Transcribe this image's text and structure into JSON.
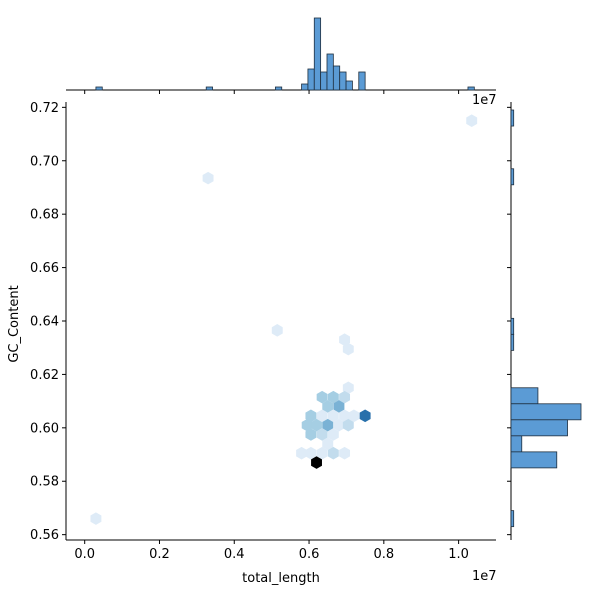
{
  "chart_data": {
    "type": "scatter",
    "subtype": "hexbin-jointplot",
    "xlabel": "total_length",
    "ylabel": "GC_Content",
    "x_offset_text": "1e7",
    "xlim": [
      -0.05,
      1.1
    ],
    "ylim": [
      0.558,
      0.722
    ],
    "x_ticks": [
      "0.0",
      "0.2",
      "0.4",
      "0.6",
      "0.8",
      "1.0"
    ],
    "y_ticks": [
      "0.56",
      "0.58",
      "0.60",
      "0.62",
      "0.64",
      "0.66",
      "0.68",
      "0.70",
      "0.72"
    ],
    "grid": false,
    "legend": "none",
    "colors": {
      "palette_light": "#deebf7",
      "palette_mid": "#9ecae1",
      "palette_dark": "#3182bd",
      "peak": "#000000",
      "hist_fill": "#5b9bd5"
    },
    "hexbins": [
      {
        "x": 10.35,
        "y": 0.715,
        "count": 1
      },
      {
        "x": 3.3,
        "y": 0.6935,
        "count": 1
      },
      {
        "x": 5.15,
        "y": 0.6365,
        "count": 1
      },
      {
        "x": 6.95,
        "y": 0.633,
        "count": 1
      },
      {
        "x": 7.05,
        "y": 0.6295,
        "count": 1
      },
      {
        "x": 7.05,
        "y": 0.615,
        "count": 1
      },
      {
        "x": 6.35,
        "y": 0.6115,
        "count": 3
      },
      {
        "x": 6.65,
        "y": 0.6115,
        "count": 3
      },
      {
        "x": 6.95,
        "y": 0.6115,
        "count": 2
      },
      {
        "x": 6.5,
        "y": 0.608,
        "count": 3
      },
      {
        "x": 6.8,
        "y": 0.608,
        "count": 4
      },
      {
        "x": 6.05,
        "y": 0.6045,
        "count": 3
      },
      {
        "x": 6.35,
        "y": 0.6045,
        "count": 1
      },
      {
        "x": 6.65,
        "y": 0.6045,
        "count": 1
      },
      {
        "x": 6.95,
        "y": 0.6045,
        "count": 1
      },
      {
        "x": 7.2,
        "y": 0.6045,
        "count": 1
      },
      {
        "x": 7.5,
        "y": 0.6045,
        "count": 6
      },
      {
        "x": 5.95,
        "y": 0.601,
        "count": 3
      },
      {
        "x": 6.2,
        "y": 0.601,
        "count": 3
      },
      {
        "x": 6.5,
        "y": 0.601,
        "count": 4
      },
      {
        "x": 6.8,
        "y": 0.601,
        "count": 1
      },
      {
        "x": 7.05,
        "y": 0.601,
        "count": 2
      },
      {
        "x": 6.05,
        "y": 0.5975,
        "count": 3
      },
      {
        "x": 6.35,
        "y": 0.5975,
        "count": 2
      },
      {
        "x": 6.65,
        "y": 0.5975,
        "count": 1
      },
      {
        "x": 6.5,
        "y": 0.594,
        "count": 1
      },
      {
        "x": 5.8,
        "y": 0.5905,
        "count": 1
      },
      {
        "x": 6.05,
        "y": 0.5905,
        "count": 1
      },
      {
        "x": 6.35,
        "y": 0.5905,
        "count": 1
      },
      {
        "x": 6.65,
        "y": 0.5905,
        "count": 2
      },
      {
        "x": 6.95,
        "y": 0.5905,
        "count": 1
      },
      {
        "x": 6.2,
        "y": 0.587,
        "count": 10
      },
      {
        "x": 0.3,
        "y": 0.566,
        "count": 1
      }
    ],
    "x_marginal_hist": [
      {
        "x0": 0.3,
        "x1": 0.47,
        "count": 1
      },
      {
        "x0": 3.25,
        "x1": 3.42,
        "count": 1
      },
      {
        "x0": 5.1,
        "x1": 5.27,
        "count": 1
      },
      {
        "x0": 5.8,
        "x1": 5.97,
        "count": 2
      },
      {
        "x0": 5.97,
        "x1": 6.14,
        "count": 7
      },
      {
        "x0": 6.14,
        "x1": 6.31,
        "count": 24
      },
      {
        "x0": 6.31,
        "x1": 6.48,
        "count": 6
      },
      {
        "x0": 6.48,
        "x1": 6.65,
        "count": 12
      },
      {
        "x0": 6.65,
        "x1": 6.82,
        "count": 8
      },
      {
        "x0": 6.82,
        "x1": 6.99,
        "count": 6
      },
      {
        "x0": 6.99,
        "x1": 7.16,
        "count": 3
      },
      {
        "x0": 7.33,
        "x1": 7.5,
        "count": 6
      },
      {
        "x0": 10.25,
        "x1": 10.42,
        "count": 1
      }
    ],
    "y_marginal_hist": [
      {
        "y0": 0.713,
        "y1": 0.719,
        "count": 1
      },
      {
        "y0": 0.691,
        "y1": 0.697,
        "count": 1
      },
      {
        "y0": 0.635,
        "y1": 0.641,
        "count": 1
      },
      {
        "y0": 0.629,
        "y1": 0.635,
        "count": 1
      },
      {
        "y0": 0.609,
        "y1": 0.615,
        "count": 10
      },
      {
        "y0": 0.603,
        "y1": 0.609,
        "count": 26
      },
      {
        "y0": 0.597,
        "y1": 0.603,
        "count": 21
      },
      {
        "y0": 0.591,
        "y1": 0.597,
        "count": 4
      },
      {
        "y0": 0.585,
        "y1": 0.591,
        "count": 17
      },
      {
        "y0": 0.563,
        "y1": 0.569,
        "count": 1
      }
    ]
  }
}
